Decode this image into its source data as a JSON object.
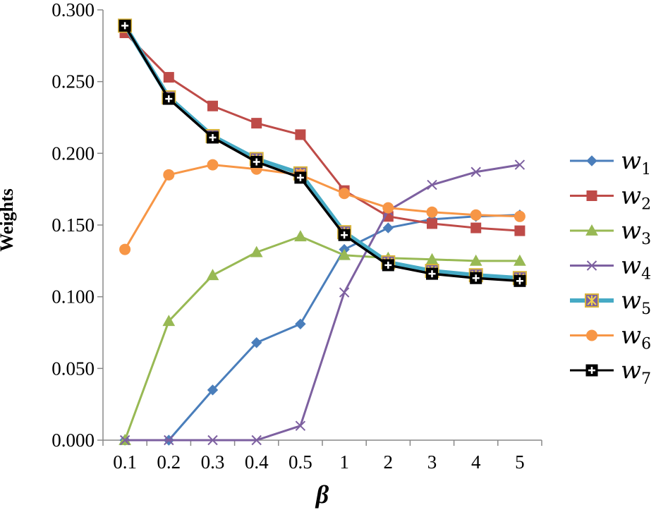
{
  "chart_data": {
    "type": "line",
    "xlabel": "β",
    "ylabel": "Weights",
    "categories": [
      "0.1",
      "0.2",
      "0.3",
      "0.4",
      "0.5",
      "1",
      "2",
      "3",
      "4",
      "5"
    ],
    "ylim": [
      0,
      0.3
    ],
    "yticks": [
      "0.000",
      "0.050",
      "0.100",
      "0.150",
      "0.200",
      "0.250",
      "0.300"
    ],
    "legend_position": "right",
    "series": [
      {
        "name": "w",
        "sub": "1",
        "color": "#4a7ebb",
        "marker": "diamond",
        "values": [
          0.0,
          0.0,
          0.035,
          0.068,
          0.081,
          0.133,
          0.148,
          0.154,
          0.156,
          0.157
        ]
      },
      {
        "name": "w",
        "sub": "2",
        "color": "#be4b48",
        "marker": "square",
        "values": [
          0.284,
          0.253,
          0.233,
          0.221,
          0.213,
          0.174,
          0.156,
          0.151,
          0.148,
          0.146
        ]
      },
      {
        "name": "w",
        "sub": "3",
        "color": "#98b954",
        "marker": "triangle",
        "values": [
          0.0,
          0.083,
          0.115,
          0.131,
          0.142,
          0.129,
          0.127,
          0.126,
          0.125,
          0.125
        ]
      },
      {
        "name": "w",
        "sub": "4",
        "color": "#7d60a0",
        "marker": "x",
        "values": [
          0.0,
          0.0,
          0.0,
          0.0,
          0.01,
          0.103,
          0.16,
          0.178,
          0.187,
          0.192
        ]
      },
      {
        "name": "w",
        "sub": "5",
        "color": "#46aac5",
        "marker": "square-star",
        "values": [
          0.289,
          0.239,
          0.212,
          0.196,
          0.186,
          0.145,
          0.124,
          0.118,
          0.115,
          0.113
        ]
      },
      {
        "name": "w",
        "sub": "6",
        "color": "#f79646",
        "marker": "circle",
        "values": [
          0.133,
          0.185,
          0.192,
          0.189,
          0.185,
          0.172,
          0.162,
          0.159,
          0.157,
          0.156
        ]
      },
      {
        "name": "w",
        "sub": "7",
        "color": "#000000",
        "marker": "square-cross",
        "values": [
          0.289,
          0.238,
          0.211,
          0.194,
          0.183,
          0.143,
          0.122,
          0.116,
          0.113,
          0.111
        ]
      }
    ]
  }
}
